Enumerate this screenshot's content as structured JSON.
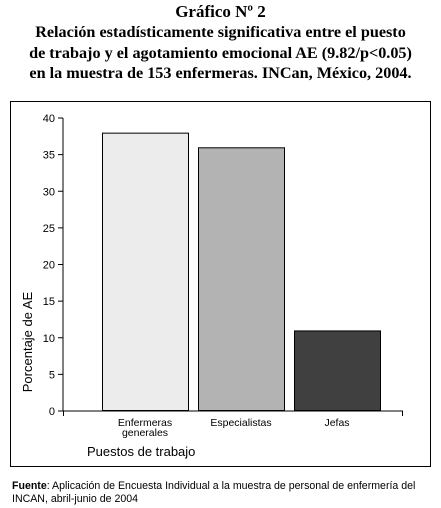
{
  "heading": {
    "line0": "Gráfico Nº 2",
    "line1": "Relación estadísticamente significativa entre el puesto",
    "line2": "de trabajo y el agotamiento emocional AE (9.82/p<0.05)",
    "line3": "en la muestra de 153 enfermeras. INCan, México, 2004."
  },
  "chart_data": {
    "type": "bar",
    "categories": [
      [
        "Enfermeras",
        "generales"
      ],
      [
        "Especialistas"
      ],
      [
        "Jefas"
      ]
    ],
    "values": [
      38,
      36,
      11
    ],
    "colors": [
      "#ececec",
      "#b3b3b3",
      "#404040"
    ],
    "xlabel": "Puestos de trabajo",
    "ylabel": "Porcentaje de AE",
    "ylim": [
      0,
      40
    ],
    "yticks": [
      "0",
      "5",
      "10",
      "15",
      "20",
      "25",
      "30",
      "35",
      "40"
    ],
    "grid": false
  },
  "source": {
    "label": "Fuente",
    "text": ": Aplicación de Encuesta Individual a la muestra de personal de enfermería del INCAN, abril-junio de 2004"
  }
}
